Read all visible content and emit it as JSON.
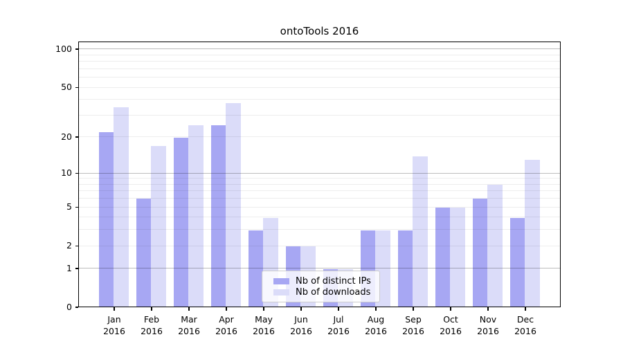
{
  "title": "ontoTools 2016",
  "chart_data": {
    "type": "bar",
    "title": "ontoTools 2016",
    "scale": "log10(value+1)",
    "categories": [
      "Jan 2016",
      "Feb 2016",
      "Mar 2016",
      "Apr 2016",
      "May 2016",
      "Jun 2016",
      "Jul 2016",
      "Aug 2016",
      "Sep 2016",
      "Oct 2016",
      "Nov 2016",
      "Dec 2016"
    ],
    "series": [
      {
        "name": "Nb of distinct IPs",
        "color": "#a7a7f3",
        "values": [
          22,
          6,
          20,
          25,
          3,
          2,
          1,
          3,
          3,
          5,
          6,
          4
        ]
      },
      {
        "name": "Nb of downloads",
        "color": "#dbdcf9",
        "values": [
          35,
          17,
          25,
          38,
          4,
          2,
          1,
          3,
          14,
          5,
          8,
          13
        ]
      }
    ],
    "y_ticks": [
      0,
      1,
      2,
      5,
      10,
      20,
      50,
      100
    ],
    "minor_gridlines": [
      2,
      3,
      4,
      5,
      6,
      7,
      8,
      9,
      20,
      30,
      40,
      50,
      60,
      70,
      80,
      90
    ],
    "major_gridlines": [
      1,
      10,
      100
    ],
    "ylim": [
      0,
      100
    ],
    "grid": "horizontal, log-style minor + major",
    "legend_position": "lower center"
  },
  "colors": {
    "bar_distinct_ips": "#a7a7f3",
    "bar_downloads": "#dbdcf9",
    "spine": "#000000",
    "grid_minor": "#ededed",
    "grid_major": "#bdbdbd",
    "legend_border": "#cccccc"
  }
}
